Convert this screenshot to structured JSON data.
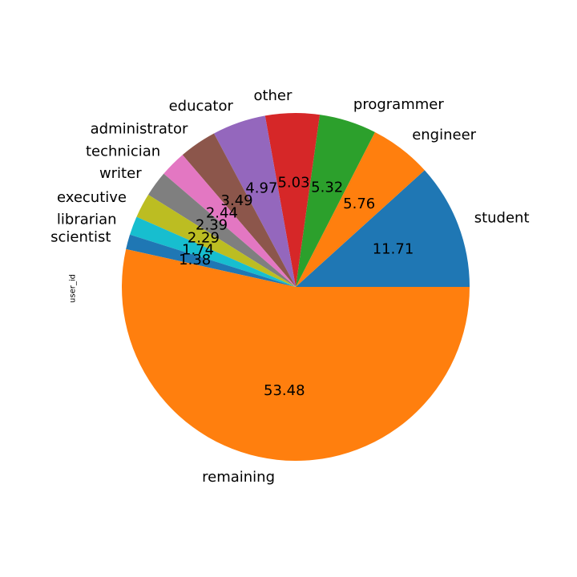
{
  "chart_data": {
    "type": "pie",
    "title": "",
    "ylabel": "user_id",
    "start_angle_deg": 0,
    "direction": "counterclockwise",
    "slices": [
      {
        "label": "student",
        "value": 11.71,
        "display": "11.71",
        "color": "#1f77b4"
      },
      {
        "label": "engineer",
        "value": 5.76,
        "display": "5.76",
        "color": "#ff7f0e"
      },
      {
        "label": "programmer",
        "value": 5.32,
        "display": "5.32",
        "color": "#2ca02c"
      },
      {
        "label": "other",
        "value": 5.03,
        "display": "5.03",
        "color": "#d62728"
      },
      {
        "label": "educator",
        "value": 4.97,
        "display": "4.97",
        "color": "#9467bd"
      },
      {
        "label": "administrator",
        "value": 3.49,
        "display": "3.49",
        "color": "#8c564b"
      },
      {
        "label": "technician",
        "value": 2.44,
        "display": "2.44",
        "color": "#e377c2"
      },
      {
        "label": "writer",
        "value": 2.39,
        "display": "2.39",
        "color": "#7f7f7f"
      },
      {
        "label": "executive",
        "value": 2.29,
        "display": "2.29",
        "color": "#bcbd22"
      },
      {
        "label": "librarian",
        "value": 1.74,
        "display": "1.74",
        "color": "#17becf"
      },
      {
        "label": "scientist",
        "value": 1.38,
        "display": "1.38",
        "color": "#1f77b4"
      },
      {
        "label": "remaining",
        "value": 53.48,
        "display": "53.48",
        "color": "#ff7f0e"
      }
    ]
  }
}
